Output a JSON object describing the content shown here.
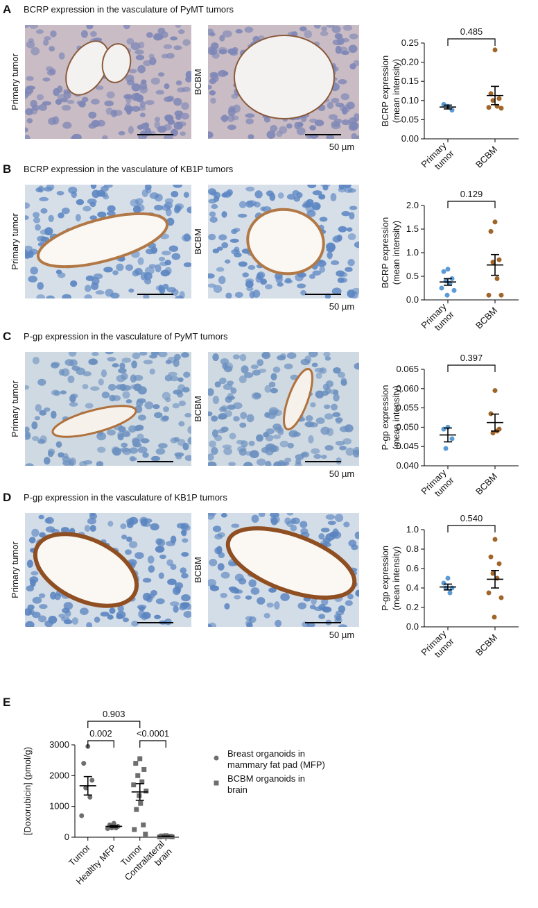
{
  "panels": [
    {
      "letter": "A",
      "heading": "BCRP expression in the vasculature of PyMT tumors",
      "image_labels": [
        "Primary tumor",
        "BCBM"
      ],
      "scale_bar": "50 µm"
    },
    {
      "letter": "B",
      "heading": "BCRP expression in the vasculature of KB1P tumors",
      "image_labels": [
        "Primary tumor",
        "BCBM"
      ],
      "scale_bar": "50 µm"
    },
    {
      "letter": "C",
      "heading": "P-gp expression in the vasculature of PyMT tumors",
      "image_labels": [
        "Primary tumor",
        "BCBM"
      ],
      "scale_bar": "50 µm"
    },
    {
      "letter": "D",
      "heading": "P-gp expression in the vasculature of KB1P tumors",
      "image_labels": [
        "Primary tumor",
        "BCBM"
      ],
      "scale_bar": "50 µm"
    },
    {
      "letter": "E"
    }
  ],
  "chart_data": [
    {
      "type": "dot",
      "ylabel": "BCRP expression\n(mean intensity)",
      "categories": [
        "Primary\ntumor",
        "BCBM"
      ],
      "colors": [
        "#5b9bd5",
        "#a0652a"
      ],
      "markers": [
        "circle",
        "circle"
      ],
      "values": [
        [
          0.085,
          0.09,
          0.075
        ],
        [
          0.232,
          0.118,
          0.105,
          0.1,
          0.085,
          0.082,
          0.08
        ]
      ],
      "means": [
        0.083,
        0.113
      ],
      "sems": [
        0.005,
        0.024
      ],
      "ylim": [
        0,
        0.25
      ],
      "yticks": [
        {
          "value": 0,
          "label": "0.00"
        },
        0.05,
        {
          "value": 0.1,
          "label": "0.10"
        },
        0.15,
        {
          "value": 0.2,
          "label": "0.20"
        },
        0.25
      ],
      "comparisons": [
        {
          "between": [
            0,
            1
          ],
          "label": "0.485"
        }
      ]
    },
    {
      "type": "dot",
      "ylabel": "BCRP expression\n(mean intensity)",
      "categories": [
        "Primary\ntumor",
        "BCBM"
      ],
      "colors": [
        "#5b9bd5",
        "#a0652a"
      ],
      "markers": [
        "circle",
        "circle"
      ],
      "values": [
        [
          0.65,
          0.6,
          0.45,
          0.4,
          0.35,
          0.25,
          0.2,
          0.1
        ],
        [
          1.65,
          1.45,
          0.85,
          0.8,
          0.45,
          0.1,
          0.1
        ]
      ],
      "means": [
        0.38,
        0.74
      ],
      "sems": [
        0.07,
        0.22
      ],
      "ylim": [
        0,
        2
      ],
      "yticks": [
        {
          "value": 0,
          "label": "0.0"
        },
        0.5,
        {
          "value": 1,
          "label": "1.0"
        },
        1.5,
        {
          "value": 2,
          "label": "2.0"
        }
      ],
      "comparisons": [
        {
          "between": [
            0,
            1
          ],
          "label": "0.129"
        }
      ]
    },
    {
      "type": "dot",
      "ylabel": "P-gp expression\n(mean intensity)",
      "categories": [
        "Primary\ntumor",
        "BCBM"
      ],
      "colors": [
        "#5b9bd5",
        "#a0652a"
      ],
      "markers": [
        "circle",
        "circle"
      ],
      "values": [
        [
          0.05,
          0.0495,
          0.047,
          0.0445
        ],
        [
          0.0595,
          0.0535,
          0.0495,
          0.0485,
          0.049
        ]
      ],
      "means": [
        0.048,
        0.0512
      ],
      "sems": [
        0.0018,
        0.0022
      ],
      "ylim": [
        0.04,
        0.065
      ],
      "yticks": [
        {
          "value": 0.04,
          "label": "0.040"
        },
        0.045,
        {
          "value": 0.05,
          "label": "0.050"
        },
        0.055,
        {
          "value": 0.06,
          "label": "0.060"
        },
        0.065
      ],
      "comparisons": [
        {
          "between": [
            0,
            1
          ],
          "label": "0.397"
        }
      ]
    },
    {
      "type": "dot",
      "ylabel": "P-gp expression\n(mean intensity)",
      "categories": [
        "Primary\ntumor",
        "BCBM"
      ],
      "colors": [
        "#5b9bd5",
        "#a0652a"
      ],
      "markers": [
        "circle",
        "circle"
      ],
      "values": [
        [
          0.5,
          0.45,
          0.4,
          0.4,
          0.35
        ],
        [
          0.9,
          0.72,
          0.65,
          0.55,
          0.5,
          0.35,
          0.3,
          0.1
        ]
      ],
      "means": [
        0.41,
        0.49
      ],
      "sems": [
        0.03,
        0.09
      ],
      "ylim": [
        0,
        1
      ],
      "yticks": [
        {
          "value": 0,
          "label": "0.0"
        },
        0.2,
        0.4,
        0.6,
        0.8,
        {
          "value": 1,
          "label": "1.0"
        }
      ],
      "comparisons": [
        {
          "between": [
            0,
            1
          ],
          "label": "0.540"
        }
      ]
    },
    {
      "type": "dot",
      "ylabel": "[Doxorubicin] (pmol/g)",
      "categories": [
        "Tumor",
        "Healthy MFP",
        "Tumor",
        "Contralateral\nbrain"
      ],
      "colors": [
        "#6e6e6e",
        "#6e6e6e",
        "#6e6e6e",
        "#6e6e6e"
      ],
      "markers": [
        "circle",
        "circle",
        "square",
        "square"
      ],
      "values": [
        [
          2950,
          2400,
          1850,
          1600,
          1300,
          700
        ],
        [
          450,
          400,
          350,
          300,
          300,
          280
        ],
        [
          2550,
          2400,
          2200,
          2000,
          1800,
          1700,
          1500,
          1350,
          1100,
          900,
          400,
          250,
          100
        ],
        [
          50,
          40,
          30,
          20,
          20,
          10,
          10
        ]
      ],
      "means": [
        1670,
        350,
        1470,
        30
      ],
      "sems": [
        300,
        30,
        270,
        8
      ],
      "ylim": [
        0,
        3000
      ],
      "yticks": [
        0,
        1000,
        2000,
        3000
      ],
      "comparisons": [
        {
          "between": [
            0,
            2
          ],
          "label": "0.903"
        },
        {
          "between": [
            0,
            1
          ],
          "label": "0.002"
        },
        {
          "between": [
            2,
            3
          ],
          "label": "<0.0001"
        }
      ],
      "legend": [
        {
          "name": "Breast organoids in\nmammary fat pad (MFP)",
          "color": "#6e6e6e",
          "marker": "circle"
        },
        {
          "name": "BCBM organoids in\nbrain",
          "color": "#6e6e6e",
          "marker": "square"
        }
      ]
    }
  ]
}
